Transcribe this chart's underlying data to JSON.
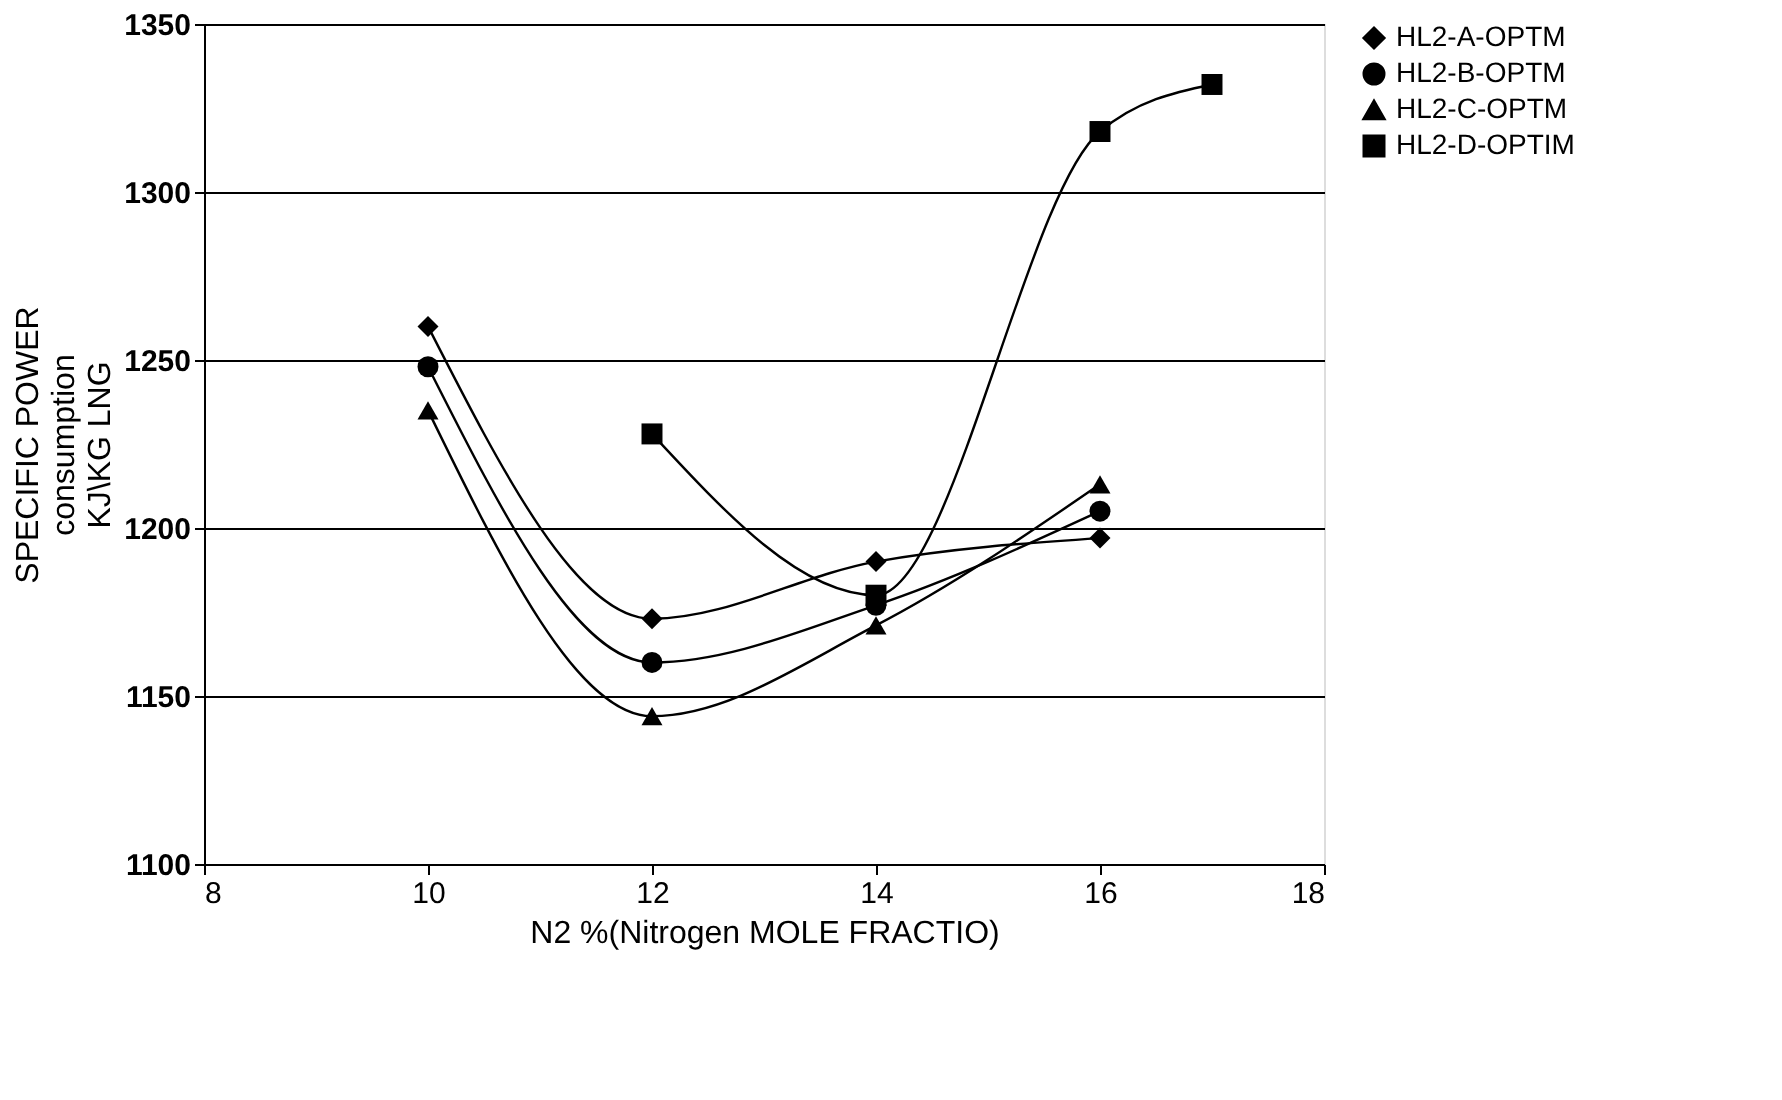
{
  "chart_data": {
    "type": "line",
    "xlabel": "N2 %(Nitrogen MOLE FRACTIO)",
    "ylabel": "SPECIFIC POWER\nconsumption\nKJ\\KG LNG",
    "xlim": [
      8,
      18
    ],
    "xticks": [
      8,
      10,
      12,
      14,
      16,
      18
    ],
    "ylim": [
      1100,
      1350
    ],
    "yticks": [
      1100,
      1150,
      1200,
      1250,
      1300,
      1350
    ],
    "grid": "y",
    "legend": "right",
    "line_style": "solid",
    "series": [
      {
        "name": "HL2-A-OPTM",
        "color": "#000000",
        "marker": "diamond",
        "x": [
          10,
          12,
          14,
          16
        ],
        "values": [
          1260,
          1173,
          1190,
          1197
        ]
      },
      {
        "name": "HL2-B-OPTM",
        "color": "#000000",
        "marker": "circle",
        "x": [
          10,
          12,
          14,
          16
        ],
        "values": [
          1248,
          1160,
          1177,
          1205
        ]
      },
      {
        "name": "HL2-C-OPTM",
        "color": "#000000",
        "marker": "triangle",
        "x": [
          10,
          12,
          14,
          16
        ],
        "values": [
          1235,
          1144,
          1171,
          1213
        ]
      },
      {
        "name": "HL2-D-OPTIM",
        "color": "#000000",
        "marker": "square",
        "x": [
          12,
          14,
          16,
          17
        ],
        "values": [
          1228,
          1180,
          1318,
          1332
        ]
      }
    ]
  }
}
